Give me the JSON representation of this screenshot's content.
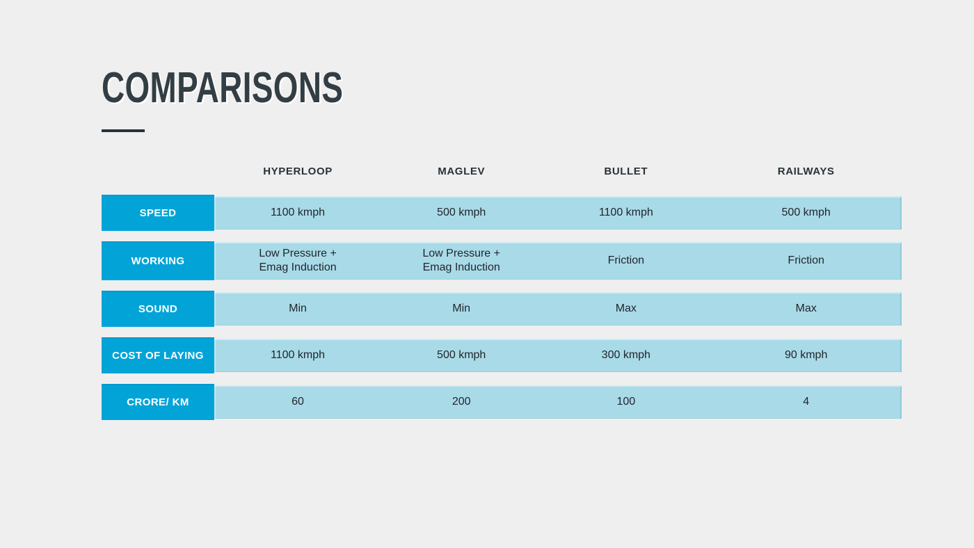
{
  "slide": {
    "title": "COMPARISONS",
    "colors": {
      "background": "#efefef",
      "title_text": "#333e44",
      "row_label_background": "#02a4d8",
      "row_label_text": "#ffffff",
      "value_band_background": "#a9dae8",
      "value_text": "#20262b",
      "header_text": "#273238"
    }
  },
  "table": {
    "columns": [
      "HYPERLOOP",
      "MAGLEV",
      "BULLET",
      "RAILWAYS"
    ],
    "rows": [
      {
        "label": "SPEED",
        "values": [
          "1100 kmph",
          "500 kmph",
          "1100 kmph",
          "500 kmph"
        ]
      },
      {
        "label": "WORKING",
        "values": [
          "Low Pressure +\nEmag Induction",
          "Low Pressure +\nEmag Induction",
          "Friction",
          "Friction"
        ]
      },
      {
        "label": "SOUND",
        "values": [
          "Min",
          "Min",
          "Max",
          "Max"
        ]
      },
      {
        "label": "COST OF LAYING",
        "values": [
          "1100 kmph",
          "500 kmph",
          "300 kmph",
          "90 kmph"
        ]
      },
      {
        "label": "CRORE/ KM",
        "values": [
          "60",
          "200",
          "100",
          "4"
        ]
      }
    ]
  }
}
